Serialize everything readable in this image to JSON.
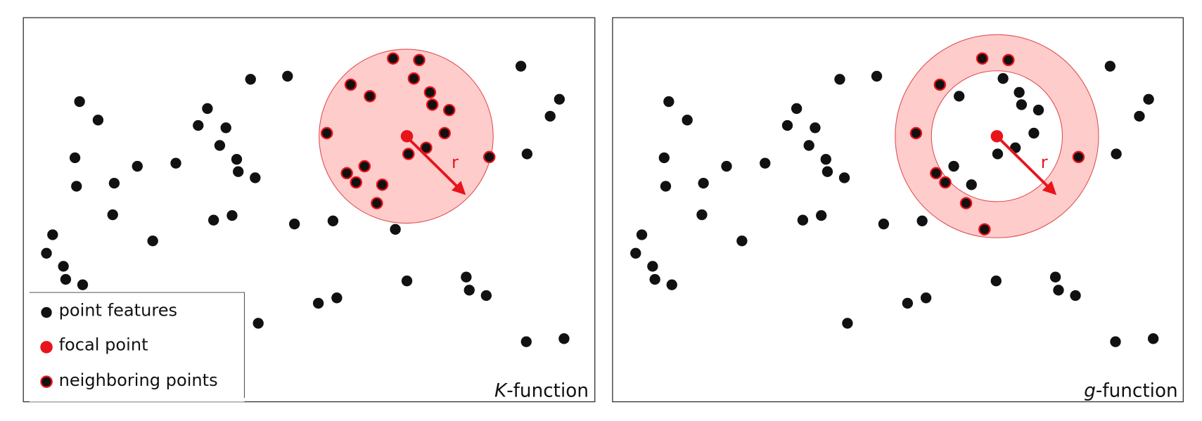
{
  "panels": [
    {
      "label_italic": "K",
      "label_rest": "-function",
      "radius_label": "r"
    },
    {
      "label_italic": "g",
      "label_rest": "-function",
      "radius_label": "r"
    }
  ],
  "legend": {
    "items": [
      "point features",
      "focal point",
      "neighboring points"
    ]
  }
}
